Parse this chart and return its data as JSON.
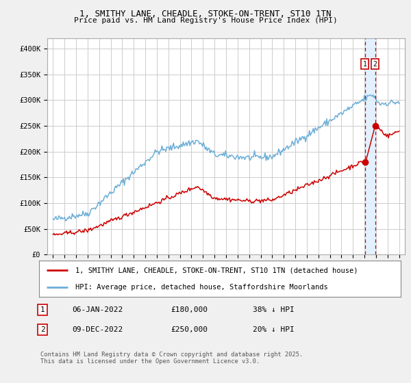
{
  "title_line1": "1, SMITHY LANE, CHEADLE, STOKE-ON-TRENT, ST10 1TN",
  "title_line2": "Price paid vs. HM Land Registry's House Price Index (HPI)",
  "ylabel_ticks": [
    "£0",
    "£50K",
    "£100K",
    "£150K",
    "£200K",
    "£250K",
    "£300K",
    "£350K",
    "£400K"
  ],
  "ytick_values": [
    0,
    50000,
    100000,
    150000,
    200000,
    250000,
    300000,
    350000,
    400000
  ],
  "ylim": [
    0,
    420000
  ],
  "xlim_start": 1994.5,
  "xlim_end": 2025.5,
  "hpi_color": "#6baed6",
  "price_color": "#cc0000",
  "dashed_color": "#cc0000",
  "shade_color": "#ddeeff",
  "background_color": "#f0f0f0",
  "plot_bg_color": "#ffffff",
  "grid_color": "#cccccc",
  "legend_label_red": "1, SMITHY LANE, CHEADLE, STOKE-ON-TRENT, ST10 1TN (detached house)",
  "legend_label_blue": "HPI: Average price, detached house, Staffordshire Moorlands",
  "transaction1_label": "1",
  "transaction1_date": "06-JAN-2022",
  "transaction1_price": "£180,000",
  "transaction1_hpi": "38% ↓ HPI",
  "transaction2_label": "2",
  "transaction2_date": "09-DEC-2022",
  "transaction2_price": "£250,000",
  "transaction2_hpi": "20% ↓ HPI",
  "footer": "Contains HM Land Registry data © Crown copyright and database right 2025.\nThis data is licensed under the Open Government Licence v3.0.",
  "marker1_x": 2022.04,
  "marker1_y": 180000,
  "marker2_x": 2022.93,
  "marker2_y": 250000
}
